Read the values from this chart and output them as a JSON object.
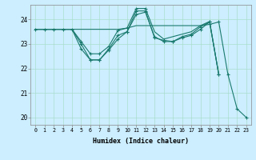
{
  "xlabel": "Humidex (Indice chaleur)",
  "bg_color": "#cceeff",
  "grid_color": "#aaddcc",
  "line_color": "#1a7a6e",
  "xlim": [
    -0.5,
    23.5
  ],
  "ylim": [
    19.7,
    24.6
  ],
  "yticks": [
    20,
    21,
    22,
    23,
    24
  ],
  "xticks": [
    0,
    1,
    2,
    3,
    4,
    5,
    6,
    7,
    8,
    9,
    10,
    11,
    12,
    13,
    14,
    15,
    16,
    17,
    18,
    19,
    20,
    21,
    22,
    23
  ],
  "series": [
    {
      "x": [
        0,
        1,
        2,
        3,
        4,
        5,
        6,
        7,
        8,
        9,
        10,
        11,
        12,
        13,
        14,
        15,
        16,
        17,
        18,
        19,
        20,
        21,
        22,
        23
      ],
      "y": [
        23.6,
        23.6,
        23.6,
        23.6,
        23.6,
        23.6,
        23.6,
        23.6,
        23.6,
        23.6,
        23.65,
        23.75,
        23.75,
        23.75,
        23.75,
        23.75,
        23.75,
        23.75,
        23.75,
        23.8,
        23.9,
        21.75,
        20.35,
        20.0
      ],
      "marker_x": [
        0,
        1,
        2,
        3,
        4,
        19,
        20,
        21,
        22,
        23
      ],
      "marker_y": [
        23.6,
        23.6,
        23.6,
        23.6,
        23.6,
        23.8,
        23.9,
        21.75,
        20.35,
        20.0
      ]
    },
    {
      "x": [
        0,
        1,
        2,
        3,
        4,
        5,
        6,
        7,
        8,
        9,
        10,
        11,
        12,
        13,
        14,
        15,
        16,
        17,
        18,
        19,
        20
      ],
      "y": [
        23.6,
        23.6,
        23.6,
        23.6,
        23.6,
        23.0,
        22.35,
        22.35,
        22.8,
        23.35,
        23.5,
        24.35,
        24.35,
        23.25,
        23.15,
        23.1,
        23.3,
        23.4,
        23.7,
        23.9,
        21.75
      ],
      "marker_x": [
        5,
        6,
        7,
        8,
        9,
        10,
        11,
        12,
        13,
        14,
        15,
        16,
        17,
        18,
        19,
        20
      ],
      "marker_y": [
        23.0,
        22.35,
        22.35,
        22.8,
        23.35,
        23.5,
        24.35,
        24.35,
        23.25,
        23.15,
        23.1,
        23.3,
        23.4,
        23.7,
        23.9,
        21.75
      ]
    },
    {
      "x": [
        0,
        1,
        2,
        3,
        4,
        5,
        6,
        7,
        8,
        9,
        10,
        11,
        12,
        13,
        14,
        15,
        16,
        17,
        18,
        19,
        20
      ],
      "y": [
        23.6,
        23.6,
        23.6,
        23.6,
        23.6,
        23.1,
        22.6,
        22.6,
        22.9,
        23.55,
        23.65,
        24.45,
        24.45,
        23.5,
        23.2,
        23.3,
        23.4,
        23.5,
        23.75,
        23.92,
        21.75
      ],
      "marker_x": [
        5,
        6,
        7,
        8,
        9,
        10,
        11,
        12
      ],
      "marker_y": [
        23.1,
        22.6,
        22.6,
        22.9,
        23.55,
        23.65,
        24.45,
        24.45
      ]
    },
    {
      "x": [
        0,
        1,
        2,
        3,
        4,
        5,
        6,
        7,
        8,
        9,
        10,
        11,
        12,
        13,
        14,
        15,
        16,
        17,
        18,
        19,
        20
      ],
      "y": [
        23.6,
        23.6,
        23.6,
        23.6,
        23.6,
        22.8,
        22.35,
        22.35,
        22.75,
        23.2,
        23.5,
        24.2,
        24.3,
        23.3,
        23.1,
        23.1,
        23.25,
        23.35,
        23.6,
        23.9,
        21.75
      ],
      "marker_x": [
        5,
        6,
        7,
        8,
        9,
        10,
        11,
        12,
        13,
        14,
        15,
        16,
        17,
        18,
        19,
        20
      ],
      "marker_y": [
        22.8,
        22.35,
        22.35,
        22.75,
        23.2,
        23.5,
        24.2,
        24.3,
        23.3,
        23.1,
        23.1,
        23.25,
        23.35,
        23.6,
        23.9,
        21.75
      ]
    }
  ]
}
